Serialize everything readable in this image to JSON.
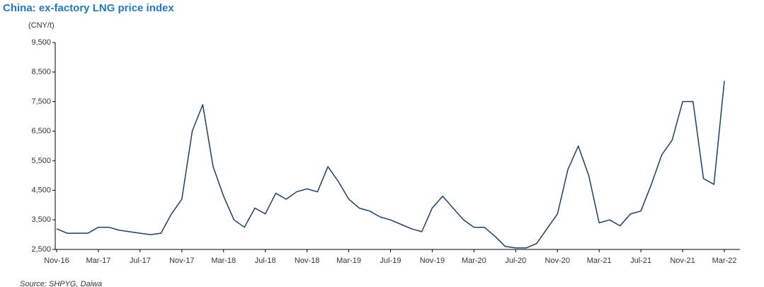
{
  "chart_data": {
    "type": "line",
    "title": "China: ex-factory LNG price index",
    "y_label": "(CNY/t)",
    "source": "Source: SHPYG, Daiwa",
    "x": [
      "Nov-16",
      "Dec-16",
      "Jan-17",
      "Feb-17",
      "Mar-17",
      "Apr-17",
      "May-17",
      "Jun-17",
      "Jul-17",
      "Aug-17",
      "Sep-17",
      "Oct-17",
      "Nov-17",
      "Dec-17",
      "Jan-18",
      "Feb-18",
      "Mar-18",
      "Apr-18",
      "May-18",
      "Jun-18",
      "Jul-18",
      "Aug-18",
      "Sep-18",
      "Oct-18",
      "Nov-18",
      "Dec-18",
      "Jan-19",
      "Feb-19",
      "Mar-19",
      "Apr-19",
      "May-19",
      "Jun-19",
      "Jul-19",
      "Aug-19",
      "Sep-19",
      "Oct-19",
      "Nov-19",
      "Dec-19",
      "Jan-20",
      "Feb-20",
      "Mar-20",
      "Apr-20",
      "May-20",
      "Jun-20",
      "Jul-20",
      "Aug-20",
      "Sep-20",
      "Oct-20",
      "Nov-20",
      "Dec-20",
      "Jan-21",
      "Feb-21",
      "Mar-21",
      "Apr-21",
      "May-21",
      "Jun-21",
      "Jul-21",
      "Aug-21",
      "Sep-21",
      "Oct-21",
      "Nov-21",
      "Dec-21",
      "Jan-22",
      "Feb-22",
      "Mar-22"
    ],
    "series": [
      {
        "name": "LNG price index",
        "color": "#1f3f66",
        "values": [
          3200,
          3050,
          3050,
          3050,
          3250,
          3250,
          3150,
          3100,
          3050,
          3000,
          3050,
          3700,
          4200,
          6500,
          7400,
          5300,
          4300,
          3500,
          3250,
          3900,
          3700,
          4400,
          4200,
          4450,
          4550,
          4450,
          5300,
          4800,
          4200,
          3900,
          3800,
          3600,
          3500,
          3350,
          3200,
          3100,
          3900,
          4300,
          3900,
          3500,
          3250,
          3250,
          2950,
          2600,
          2550,
          2550,
          2700,
          3200,
          3700,
          5200,
          6000,
          5000,
          3400,
          3500,
          3300,
          3700,
          3800,
          4700,
          5700,
          6200,
          7500,
          7500,
          4900,
          4700,
          8200
        ]
      }
    ],
    "ylim": [
      2500,
      9500
    ],
    "yticks": [
      {
        "value": 2500,
        "label": "2,500"
      },
      {
        "value": 3500,
        "label": "3,500"
      },
      {
        "value": 4500,
        "label": "4,500"
      },
      {
        "value": 5500,
        "label": "5,500"
      },
      {
        "value": 6500,
        "label": "6,500"
      },
      {
        "value": 7500,
        "label": "7,500"
      },
      {
        "value": 8500,
        "label": "8,500"
      },
      {
        "value": 9500,
        "label": "9,500"
      }
    ]
  }
}
